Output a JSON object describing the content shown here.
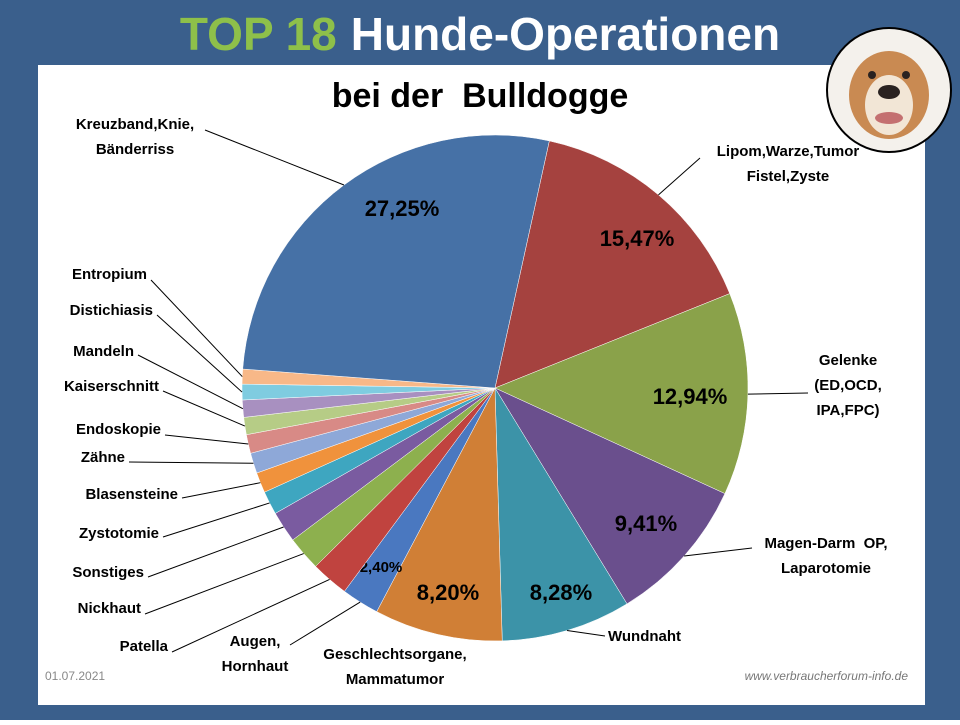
{
  "chart_data": {
    "type": "pie",
    "title_prefix": "TOP 18",
    "title": "Hunde-Operationen",
    "subtitle": "bei der  Bulldogge",
    "date": "01.07.2021",
    "source": "www.verbraucherforum-info.de",
    "categories": [
      [
        "Lipom,Warze,Tumor",
        "Fistel,Zyste"
      ],
      [
        "Gelenke",
        "(ED,OCD,",
        "IPA,FPC)"
      ],
      [
        "Magen-Darm  OP,",
        "Laparotomie"
      ],
      [
        "Wundnaht"
      ],
      [
        "Geschlechtsorgane,",
        "Mammatumor"
      ],
      [
        "Augen,",
        "Hornhaut"
      ],
      [
        "Patella"
      ],
      [
        "Nickhaut"
      ],
      [
        "Sonstiges"
      ],
      [
        "Zystotomie"
      ],
      [
        "Blasensteine"
      ],
      [
        "Zähne"
      ],
      [
        "Endoskopie"
      ],
      [
        "Kaiserschnitt"
      ],
      [
        "Mandeln"
      ],
      [
        "Distichiasis"
      ],
      [
        "Entropium"
      ],
      [
        "Kreuzband,Knie,",
        "Bänderriss"
      ]
    ],
    "values": [
      15.47,
      12.94,
      9.41,
      8.28,
      8.2,
      2.4,
      2.4,
      2.2,
      2.0,
      1.5,
      1.3,
      1.3,
      1.2,
      1.1,
      1.1,
      1.0,
      0.95,
      27.25
    ],
    "value_labels": [
      "15,47%",
      "12,94%",
      "9,41%",
      "8,28%",
      "8,20%",
      "2,40%",
      null,
      null,
      null,
      null,
      null,
      null,
      null,
      null,
      null,
      null,
      null,
      "27,25%"
    ],
    "colors": [
      "#a5423f",
      "#8aa24a",
      "#6a4f8d",
      "#3c93a8",
      "#d07f36",
      "#4a78c0",
      "#c0433f",
      "#8db04e",
      "#7a5ba0",
      "#3ea6c0",
      "#f0923c",
      "#8ea8d8",
      "#d88a86",
      "#b6cc86",
      "#a890c0",
      "#7fcce0",
      "#f8b888",
      "#4671a6"
    ]
  }
}
